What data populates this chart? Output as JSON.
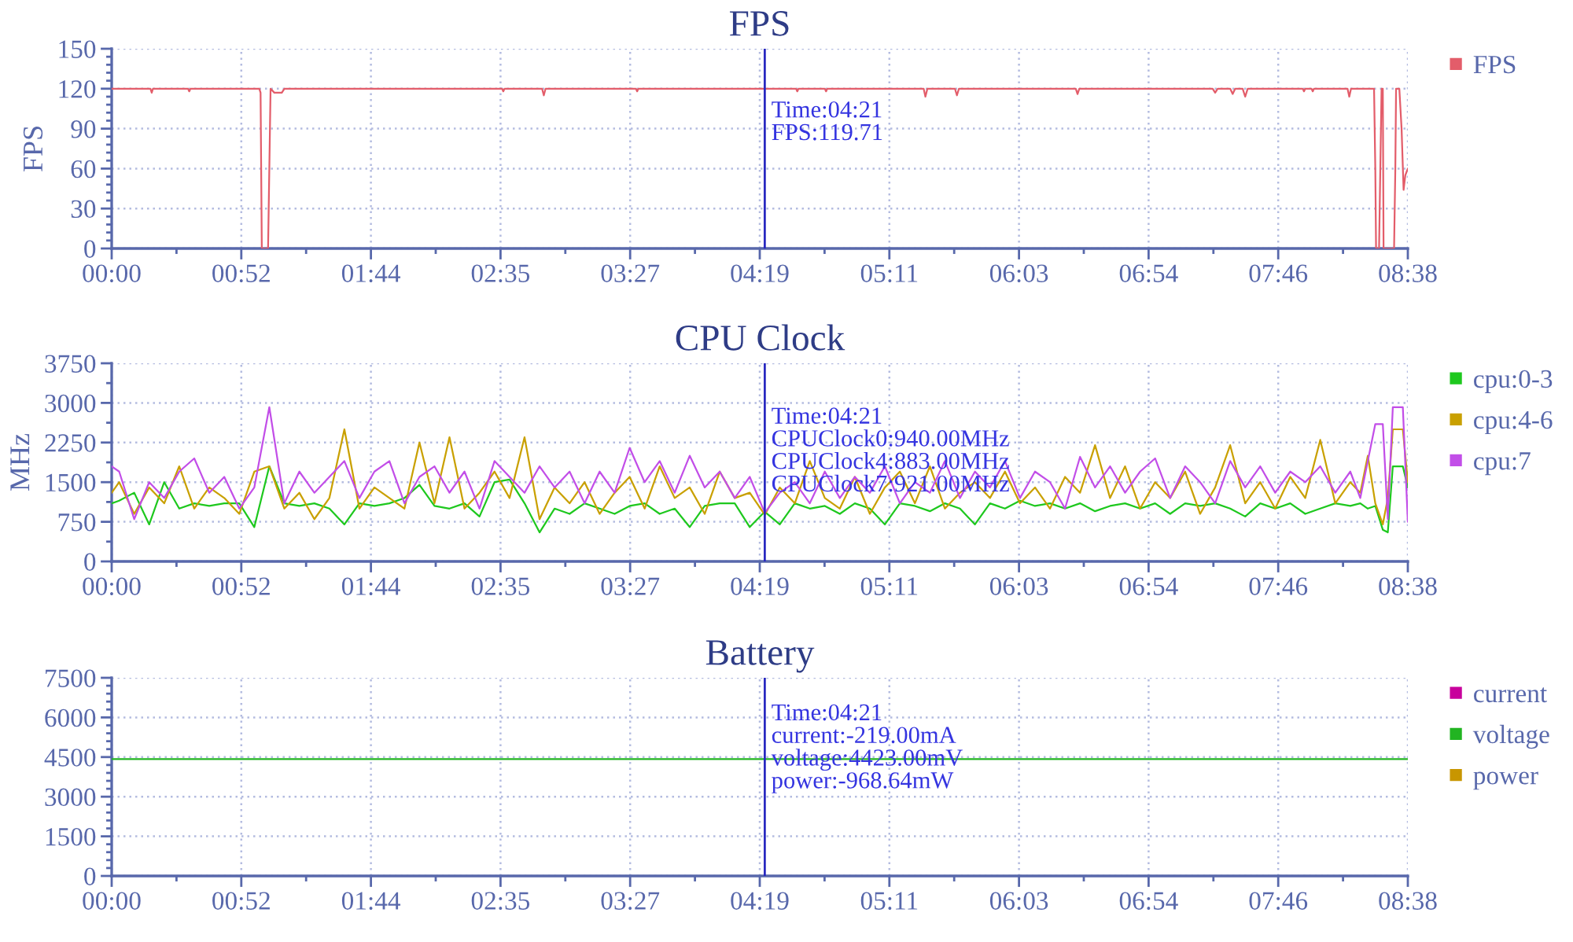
{
  "chart_data": [
    {
      "type": "line",
      "title": "FPS",
      "ylabel": "FPS",
      "x": [
        0,
        15.5,
        16,
        16.5,
        30.5,
        31,
        31.5,
        59,
        59.5,
        60,
        62.5,
        63,
        63.5,
        65,
        68,
        69,
        156,
        156.5,
        157,
        172,
        172.7,
        173.4,
        209.5,
        210,
        210.5,
        273.5,
        274,
        274.5,
        285,
        285.5,
        286,
        324.5,
        325.2,
        326,
        337,
        337.8,
        338.6,
        385.3,
        386,
        386.7,
        440,
        441,
        442,
        447,
        448,
        449,
        452,
        453,
        454,
        476,
        476.5,
        477,
        479.5,
        480,
        480.5,
        493.9,
        494.6,
        495.3,
        504.5,
        505,
        505.3,
        506.5,
        507,
        507.5,
        508,
        508.3,
        512.5,
        513,
        513.3,
        514.6,
        515.5,
        516.3,
        517,
        518
      ],
      "series": [
        {
          "name": "FPS",
          "color": "#e35d6a",
          "values": [
            120,
            120,
            117,
            120,
            120,
            118,
            120,
            120,
            117,
            0,
            0,
            60,
            120,
            117,
            117,
            120,
            120,
            118,
            120,
            120,
            115,
            120,
            120,
            118,
            120,
            120,
            118,
            120,
            120,
            118,
            120,
            120,
            114,
            120,
            120,
            115,
            120,
            120,
            116,
            120,
            120,
            117,
            120,
            120,
            116,
            120,
            120,
            114,
            120,
            120,
            118,
            120,
            120,
            118,
            120,
            120,
            114,
            120,
            120,
            60,
            0,
            0,
            60,
            120,
            120,
            0,
            0,
            60,
            120,
            120,
            90,
            44,
            55,
            60
          ]
        }
      ],
      "xlim": [
        0,
        518
      ],
      "xticks": [
        {
          "value": 0,
          "label": "00:00"
        },
        {
          "value": 25.9,
          "label": null
        },
        {
          "value": 51.8,
          "label": "00:52"
        },
        {
          "value": 77.7,
          "label": null
        },
        {
          "value": 103.6,
          "label": "01:44"
        },
        {
          "value": 129.5,
          "label": null
        },
        {
          "value": 155.4,
          "label": "02:35"
        },
        {
          "value": 181.3,
          "label": null
        },
        {
          "value": 207.2,
          "label": "03:27"
        },
        {
          "value": 233.1,
          "label": null
        },
        {
          "value": 259,
          "label": "04:19"
        },
        {
          "value": 284.9,
          "label": null
        },
        {
          "value": 310.8,
          "label": "05:11"
        },
        {
          "value": 336.7,
          "label": null
        },
        {
          "value": 362.6,
          "label": "06:03"
        },
        {
          "value": 388.5,
          "label": null
        },
        {
          "value": 414.4,
          "label": "06:54"
        },
        {
          "value": 440.3,
          "label": null
        },
        {
          "value": 466.2,
          "label": "07:46"
        },
        {
          "value": 492.1,
          "label": null
        },
        {
          "value": 518,
          "label": "08:38"
        }
      ],
      "ylim": [
        0,
        150
      ],
      "yticks": [
        0,
        {
          "value": 6,
          "label": null
        },
        {
          "value": 12,
          "label": null
        },
        {
          "value": 18,
          "label": null
        },
        {
          "value": 24,
          "label": null
        },
        30,
        {
          "value": 36,
          "label": null
        },
        {
          "value": 42,
          "label": null
        },
        {
          "value": 48,
          "label": null
        },
        {
          "value": 54,
          "label": null
        },
        60,
        {
          "value": 66,
          "label": null
        },
        {
          "value": 72,
          "label": null
        },
        {
          "value": 78,
          "label": null
        },
        {
          "value": 84,
          "label": null
        },
        90,
        {
          "value": 96,
          "label": null
        },
        {
          "value": 102,
          "label": null
        },
        {
          "value": 108,
          "label": null
        },
        {
          "value": 114,
          "label": null
        },
        120,
        {
          "value": 126,
          "label": null
        },
        {
          "value": 132,
          "label": null
        },
        {
          "value": 138,
          "label": null
        },
        {
          "value": 144,
          "label": null
        },
        150
      ],
      "grid": true,
      "legend": "top right",
      "ref_lines": [
        {
          "axis": "x",
          "value": 261,
          "color": "#2828c0"
        }
      ],
      "annotations": [
        "Time:04:21\nFPS:119.71"
      ]
    },
    {
      "type": "line",
      "title": "CPU Clock",
      "ylabel": "MHz",
      "x": [
        0,
        3,
        9,
        15,
        21,
        27,
        33,
        39,
        45,
        51,
        57,
        63,
        69,
        75,
        81,
        87,
        93,
        99,
        105,
        111,
        117,
        123,
        129,
        135,
        141,
        147,
        153,
        159,
        165,
        171,
        177,
        183,
        189,
        195,
        201,
        207,
        213,
        219,
        225,
        231,
        237,
        243,
        249,
        255,
        261,
        267,
        273,
        279,
        285,
        291,
        297,
        303,
        309,
        315,
        321,
        327,
        333,
        339,
        345,
        351,
        357,
        363,
        369,
        375,
        381,
        387,
        393,
        399,
        405,
        411,
        417,
        423,
        429,
        435,
        441,
        447,
        453,
        459,
        465,
        471,
        477,
        483,
        489,
        495,
        499,
        502,
        505,
        508,
        510,
        512,
        514,
        516,
        518
      ],
      "series": [
        {
          "name": "cpu:0-3",
          "color": "#1ec81e",
          "values": [
            1100,
            1150,
            1300,
            700,
            1500,
            1000,
            1100,
            1050,
            1100,
            1100,
            650,
            1800,
            1100,
            1050,
            1100,
            1000,
            700,
            1100,
            1050,
            1100,
            1200,
            1450,
            1050,
            1000,
            1100,
            850,
            1500,
            1550,
            1100,
            550,
            1000,
            900,
            1100,
            1000,
            900,
            1050,
            1100,
            900,
            1000,
            650,
            1050,
            1100,
            1100,
            650,
            940,
            700,
            1100,
            1000,
            1050,
            900,
            1100,
            1000,
            700,
            1100,
            1050,
            950,
            1100,
            1000,
            700,
            1100,
            1000,
            1150,
            1050,
            1100,
            1000,
            1100,
            950,
            1050,
            1100,
            1000,
            1100,
            900,
            1100,
            1050,
            1100,
            1000,
            850,
            1100,
            1000,
            1100,
            900,
            1000,
            1100,
            1050,
            1100,
            1000,
            1050,
            600,
            550,
            1800,
            1800,
            1800,
            1400
          ]
        },
        {
          "name": "cpu:4-6",
          "color": "#c9a000",
          "values": [
            1300,
            1500,
            900,
            1400,
            1100,
            1800,
            1000,
            1400,
            1200,
            900,
            1700,
            1800,
            1000,
            1300,
            800,
            1200,
            2500,
            1000,
            1400,
            1200,
            1000,
            2250,
            1100,
            2350,
            1000,
            1300,
            1700,
            1200,
            2350,
            800,
            1400,
            1100,
            1500,
            900,
            1300,
            1600,
            1000,
            1800,
            1200,
            1400,
            900,
            1700,
            1200,
            1300,
            883,
            1400,
            1100,
            1900,
            1200,
            1000,
            1600,
            900,
            1400,
            1700,
            1100,
            1800,
            1000,
            1300,
            1500,
            1200,
            1700,
            1100,
            1400,
            1000,
            1600,
            1300,
            2200,
            1200,
            1800,
            1000,
            1500,
            1200,
            1700,
            900,
            1400,
            2200,
            1100,
            1500,
            1000,
            1600,
            1200,
            2300,
            1100,
            1500,
            1300,
            2000,
            1100,
            700,
            1200,
            2500,
            2500,
            2500,
            1500
          ]
        },
        {
          "name": "cpu:7",
          "color": "#c24ee8",
          "values": [
            1800,
            1700,
            800,
            1500,
            1200,
            1700,
            1950,
            1300,
            1600,
            1000,
            1400,
            2920,
            1100,
            1700,
            1300,
            1600,
            1900,
            1200,
            1700,
            1900,
            1100,
            1600,
            1800,
            1300,
            1700,
            1000,
            1900,
            1600,
            1300,
            1800,
            1400,
            1700,
            1100,
            1700,
            1300,
            2150,
            1500,
            1900,
            1300,
            2000,
            1400,
            1700,
            1200,
            1600,
            921,
            1300,
            1500,
            1100,
            1700,
            1200,
            1600,
            1300,
            1800,
            1100,
            1500,
            1300,
            1900,
            1200,
            1700,
            1400,
            1900,
            1200,
            1700,
            1500,
            1000,
            1980,
            1400,
            1800,
            1300,
            1700,
            1950,
            1200,
            1800,
            1500,
            1100,
            1900,
            1400,
            1800,
            1300,
            1700,
            1500,
            1800,
            1300,
            1700,
            1200,
            1900,
            2600,
            2600,
            800,
            2920,
            2920,
            2920,
            750
          ]
        }
      ],
      "xlim": [
        0,
        518
      ],
      "xticks": [
        {
          "value": 0,
          "label": "00:00"
        },
        {
          "value": 25.9,
          "label": null
        },
        {
          "value": 51.8,
          "label": "00:52"
        },
        {
          "value": 77.7,
          "label": null
        },
        {
          "value": 103.6,
          "label": "01:44"
        },
        {
          "value": 129.5,
          "label": null
        },
        {
          "value": 155.4,
          "label": "02:35"
        },
        {
          "value": 181.3,
          "label": null
        },
        {
          "value": 207.2,
          "label": "03:27"
        },
        {
          "value": 233.1,
          "label": null
        },
        {
          "value": 259,
          "label": "04:19"
        },
        {
          "value": 284.9,
          "label": null
        },
        {
          "value": 310.8,
          "label": "05:11"
        },
        {
          "value": 336.7,
          "label": null
        },
        {
          "value": 362.6,
          "label": "06:03"
        },
        {
          "value": 388.5,
          "label": null
        },
        {
          "value": 414.4,
          "label": "06:54"
        },
        {
          "value": 440.3,
          "label": null
        },
        {
          "value": 466.2,
          "label": "07:46"
        },
        {
          "value": 492.1,
          "label": null
        },
        {
          "value": 518,
          "label": "08:38"
        }
      ],
      "ylim": [
        0,
        3750
      ],
      "yticks": [
        0,
        {
          "value": 375,
          "label": null
        },
        750,
        {
          "value": 1125,
          "label": null
        },
        1500,
        {
          "value": 1875,
          "label": null
        },
        2250,
        {
          "value": 2625,
          "label": null
        },
        3000,
        {
          "value": 3375,
          "label": null
        },
        3750
      ],
      "grid": true,
      "legend": "top right",
      "ref_lines": [
        {
          "axis": "x",
          "value": 261,
          "color": "#2828c0"
        }
      ],
      "annotations": [
        "Time:04:21\nCPUClock0:940.00MHz\nCPUClock4:883.00MHz\nCPUClock7:921.00MHz"
      ]
    },
    {
      "type": "line",
      "title": "Battery",
      "x": [
        0,
        518
      ],
      "series": [
        {
          "name": "current",
          "color": "#c8009c",
          "values": [
            null,
            null
          ]
        },
        {
          "name": "voltage",
          "color": "#22b422",
          "values": [
            4423,
            4423
          ]
        },
        {
          "name": "power",
          "color": "#c89600",
          "values": [
            null,
            null
          ]
        }
      ],
      "xlim": [
        0,
        518
      ],
      "xticks": [
        {
          "value": 0,
          "label": "00:00"
        },
        {
          "value": 25.9,
          "label": null
        },
        {
          "value": 51.8,
          "label": "00:52"
        },
        {
          "value": 77.7,
          "label": null
        },
        {
          "value": 103.6,
          "label": "01:44"
        },
        {
          "value": 129.5,
          "label": null
        },
        {
          "value": 155.4,
          "label": "02:35"
        },
        {
          "value": 181.3,
          "label": null
        },
        {
          "value": 207.2,
          "label": "03:27"
        },
        {
          "value": 233.1,
          "label": null
        },
        {
          "value": 259,
          "label": "04:19"
        },
        {
          "value": 284.9,
          "label": null
        },
        {
          "value": 310.8,
          "label": "05:11"
        },
        {
          "value": 336.7,
          "label": null
        },
        {
          "value": 362.6,
          "label": "06:03"
        },
        {
          "value": 388.5,
          "label": null
        },
        {
          "value": 414.4,
          "label": "06:54"
        },
        {
          "value": 440.3,
          "label": null
        },
        {
          "value": 466.2,
          "label": "07:46"
        },
        {
          "value": 492.1,
          "label": null
        },
        {
          "value": 518,
          "label": "08:38"
        }
      ],
      "ylim": [
        0,
        7500
      ],
      "yticks": [
        0,
        {
          "value": 300,
          "label": null
        },
        {
          "value": 600,
          "label": null
        },
        {
          "value": 900,
          "label": null
        },
        {
          "value": 1200,
          "label": null
        },
        1500,
        {
          "value": 1800,
          "label": null
        },
        {
          "value": 2100,
          "label": null
        },
        {
          "value": 2400,
          "label": null
        },
        {
          "value": 2700,
          "label": null
        },
        3000,
        {
          "value": 3300,
          "label": null
        },
        {
          "value": 3600,
          "label": null
        },
        {
          "value": 3900,
          "label": null
        },
        {
          "value": 4200,
          "label": null
        },
        4500,
        {
          "value": 4800,
          "label": null
        },
        {
          "value": 5100,
          "label": null
        },
        {
          "value": 5400,
          "label": null
        },
        {
          "value": 5700,
          "label": null
        },
        6000,
        {
          "value": 6300,
          "label": null
        },
        {
          "value": 6600,
          "label": null
        },
        {
          "value": 6900,
          "label": null
        },
        {
          "value": 7200,
          "label": null
        },
        7500
      ],
      "grid": true,
      "legend": "top right",
      "ref_lines": [
        {
          "axis": "x",
          "value": 261,
          "color": "#2828c0"
        }
      ],
      "annotations": [
        "Time:04:21\ncurrent:-219.00mA\nvoltage:4423.00mV\npower:-968.64mW"
      ]
    }
  ]
}
